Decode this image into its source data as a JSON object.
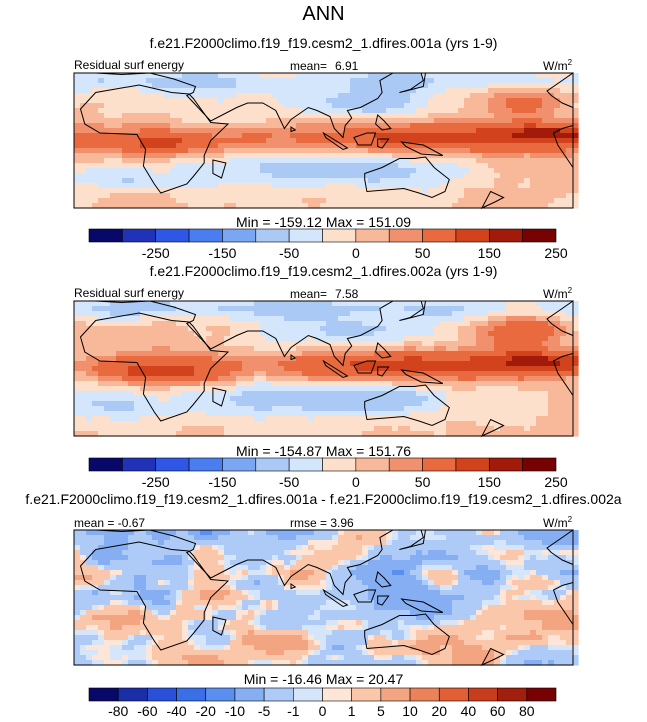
{
  "figure": {
    "title": "ANN",
    "units": "W/m",
    "units_sup": "2"
  },
  "colors": {
    "levels12": [
      "#08086b",
      "#1f32b8",
      "#2e57e6",
      "#4a7df0",
      "#7aa6f3",
      "#aac9f5",
      "#d3e6fb",
      "#fde0cc",
      "#f8b99a",
      "#f0906c",
      "#e86a3e",
      "#d2421d",
      "#a11a0a",
      "#780202"
    ],
    "levels16": [
      "#08086b",
      "#1a2ea8",
      "#2a4fd9",
      "#3a6fe8",
      "#5a8ff0",
      "#85aef3",
      "#aecbf7",
      "#d5e6fb",
      "#fde6d8",
      "#fac7ab",
      "#f3a582",
      "#ec825a",
      "#e25f36",
      "#c83d1c",
      "#a01f0d",
      "#780202"
    ],
    "land_outline": "#000000"
  },
  "panels": [
    {
      "subtitle": "f.e21.F2000climo.f19_f19.cesm2_1.dfires.001a (yrs 1-9)",
      "left_label": "Residual surf energy",
      "mean_label": "mean=",
      "mean_value": "6.91",
      "minmax": "Min = -159.12 Max = 151.09",
      "colorbar_ticks": [
        "-250",
        "-150",
        "-50",
        "0",
        "50",
        "150",
        "250"
      ]
    },
    {
      "subtitle": "f.e21.F2000climo.f19_f19.cesm2_1.dfires.002a (yrs 1-9)",
      "left_label": "Residual surf energy",
      "mean_label": "mean=",
      "mean_value": "7.58",
      "minmax": "Min = -154.87 Max = 151.76",
      "colorbar_ticks": [
        "-250",
        "-150",
        "-50",
        "0",
        "50",
        "150",
        "250"
      ]
    },
    {
      "subtitle": "f.e21.F2000climo.f19_f19.cesm2_1.dfires.001a - f.e21.F2000climo.f19_f19.cesm2_1.dfires.002a",
      "left_label": "mean =  -0.67",
      "rmse_label": "rmse =  3.96",
      "minmax": "Min = -16.46 Max = 20.47",
      "colorbar_ticks": [
        "-80",
        "-60",
        "-40",
        "-20",
        "-10",
        "-5",
        "-1",
        "0",
        "1",
        "5",
        "10",
        "20",
        "40",
        "60",
        "80"
      ]
    }
  ],
  "chart_data": [
    {
      "type": "heatmap",
      "title": "f.e21.F2000climo.f19_f19.cesm2_1.dfires.001a (yrs 1-9)",
      "variable": "Residual surf energy",
      "units": "W/m2",
      "mean": 6.91,
      "min": -159.12,
      "max": 151.09,
      "colorbar_levels": [
        -300,
        -250,
        -200,
        -150,
        -100,
        -50,
        -25,
        0,
        25,
        50,
        100,
        150,
        200,
        250,
        300
      ]
    },
    {
      "type": "heatmap",
      "title": "f.e21.F2000climo.f19_f19.cesm2_1.dfires.002a (yrs 1-9)",
      "variable": "Residual surf energy",
      "units": "W/m2",
      "mean": 7.58,
      "min": -154.87,
      "max": 151.76,
      "colorbar_levels": [
        -300,
        -250,
        -200,
        -150,
        -100,
        -50,
        -25,
        0,
        25,
        50,
        100,
        150,
        200,
        250,
        300
      ]
    },
    {
      "type": "heatmap",
      "title": "f.e21.F2000climo.f19_f19.cesm2_1.dfires.001a - f.e21.F2000climo.f19_f19.cesm2_1.dfires.002a",
      "units": "W/m2",
      "mean": -0.67,
      "rmse": 3.96,
      "min": -16.46,
      "max": 20.47,
      "colorbar_levels": [
        -80,
        -60,
        -40,
        -20,
        -10,
        -5,
        -1,
        0,
        1,
        5,
        10,
        20,
        40,
        60,
        80
      ]
    }
  ]
}
